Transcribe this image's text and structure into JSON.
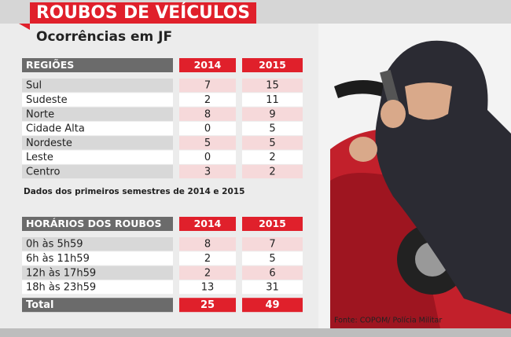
{
  "header": {
    "title": "ROUBOS DE VEÍCULOS",
    "subtitle": "Ocorrências em JF"
  },
  "regions_table": {
    "headers": [
      "REGIÕES",
      "2014",
      "2015"
    ],
    "rows": [
      [
        "Sul",
        7,
        15
      ],
      [
        "Sudeste",
        2,
        11
      ],
      [
        "Norte",
        8,
        9
      ],
      [
        "Cidade Alta",
        0,
        5
      ],
      [
        "Nordeste",
        5,
        5
      ],
      [
        "Leste",
        0,
        2
      ],
      [
        "Centro",
        3,
        2
      ]
    ]
  },
  "note": "Dados dos primeiros semestres de 2014 e 2015",
  "hours_table": {
    "headers": [
      "HORÁRIOS DOS ROUBOS",
      "2014",
      "2015"
    ],
    "rows": [
      [
        "0h às 5h59",
        8,
        7
      ],
      [
        "6h às 11h59",
        2,
        5
      ],
      [
        "12h às 17h59",
        2,
        6
      ],
      [
        "18h às 23h59",
        13,
        31
      ]
    ],
    "total": [
      "Total",
      25,
      49
    ]
  },
  "source": "Fonte: COPOM/ Polícia Militar"
}
